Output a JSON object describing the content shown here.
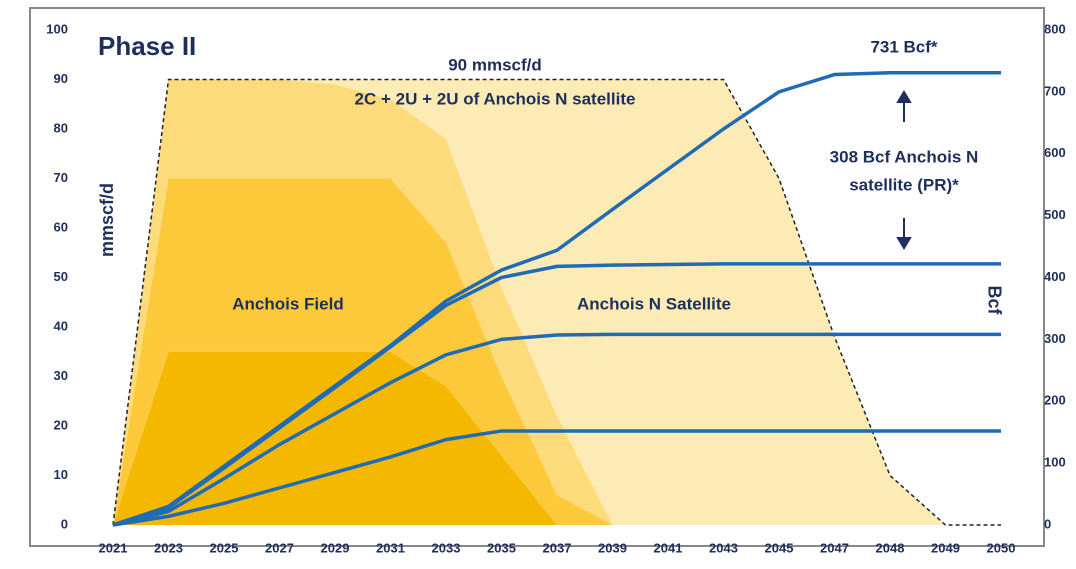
{
  "chart_data": {
    "type": "area_line",
    "title": "Phase II",
    "ylabel": "mmscf/d",
    "y2label": "Bcf",
    "categories": [
      "2021",
      "2023",
      "2025",
      "2027",
      "2029",
      "2031",
      "2033",
      "2035",
      "2037",
      "2039",
      "2041",
      "2043",
      "2045",
      "2047",
      "2048",
      "2049",
      "2050"
    ],
    "ylim": [
      0,
      100
    ],
    "yticks": [
      0,
      10,
      20,
      30,
      40,
      50,
      60,
      70,
      80,
      90,
      100
    ],
    "y2lim": [
      0,
      800
    ],
    "y2ticks": [
      0,
      100,
      200,
      300,
      400,
      500,
      600,
      700,
      800
    ],
    "stacked": true,
    "outline_color": "#222222",
    "area_series": [
      {
        "color": "#f5b800",
        "values": [
          0,
          35,
          35,
          35,
          35,
          35,
          28,
          14,
          0,
          0,
          0,
          0,
          0,
          0,
          0,
          0,
          0
        ]
      },
      {
        "color": "#fcc93a",
        "values": [
          0,
          35,
          35,
          35,
          35,
          35,
          29,
          16,
          6,
          0,
          0,
          0,
          0,
          0,
          0,
          0,
          0
        ]
      },
      {
        "color": "#fdda7a",
        "values": [
          0,
          20,
          20,
          20,
          19,
          16,
          21,
          18,
          16,
          0,
          0,
          0,
          0,
          0,
          0,
          0,
          0
        ]
      },
      {
        "color": "#fdebb5",
        "values": [
          0,
          0,
          0,
          0,
          1,
          4,
          12,
          42,
          68,
          90,
          90,
          90,
          70,
          38,
          10,
          0,
          0
        ]
      }
    ],
    "series": [
      {
        "color": "#1f6bb5",
        "axis": "y2",
        "values": [
          0,
          30,
          95,
          160,
          225,
          290,
          362,
          412,
          444,
          510,
          575,
          640,
          700,
          728,
          731,
          731,
          731
        ]
      },
      {
        "color": "#1f6bb5",
        "axis": "y2",
        "values": [
          0,
          28,
          92,
          157,
          222,
          288,
          355,
          400,
          418,
          420,
          421,
          422,
          422,
          422,
          422,
          422,
          422
        ]
      },
      {
        "color": "#1f6bb5",
        "axis": "y2",
        "values": [
          0,
          22,
          75,
          130,
          180,
          230,
          275,
          300,
          307,
          308,
          308,
          308,
          308,
          308,
          308,
          308,
          308
        ]
      },
      {
        "color": "#1f6bb5",
        "axis": "y2",
        "values": [
          0,
          14,
          35,
          60,
          85,
          110,
          138,
          152,
          152,
          152,
          152,
          152,
          152,
          152,
          152,
          152,
          152
        ]
      }
    ],
    "annotations": [
      "90 mmscf/d",
      "2C + 2U + 2U of Anchois N satellite",
      "731 Bcf*",
      "308 Bcf Anchois N",
      "satellite (PR)*",
      "Anchois Field",
      "Anchois N Satellite"
    ]
  }
}
